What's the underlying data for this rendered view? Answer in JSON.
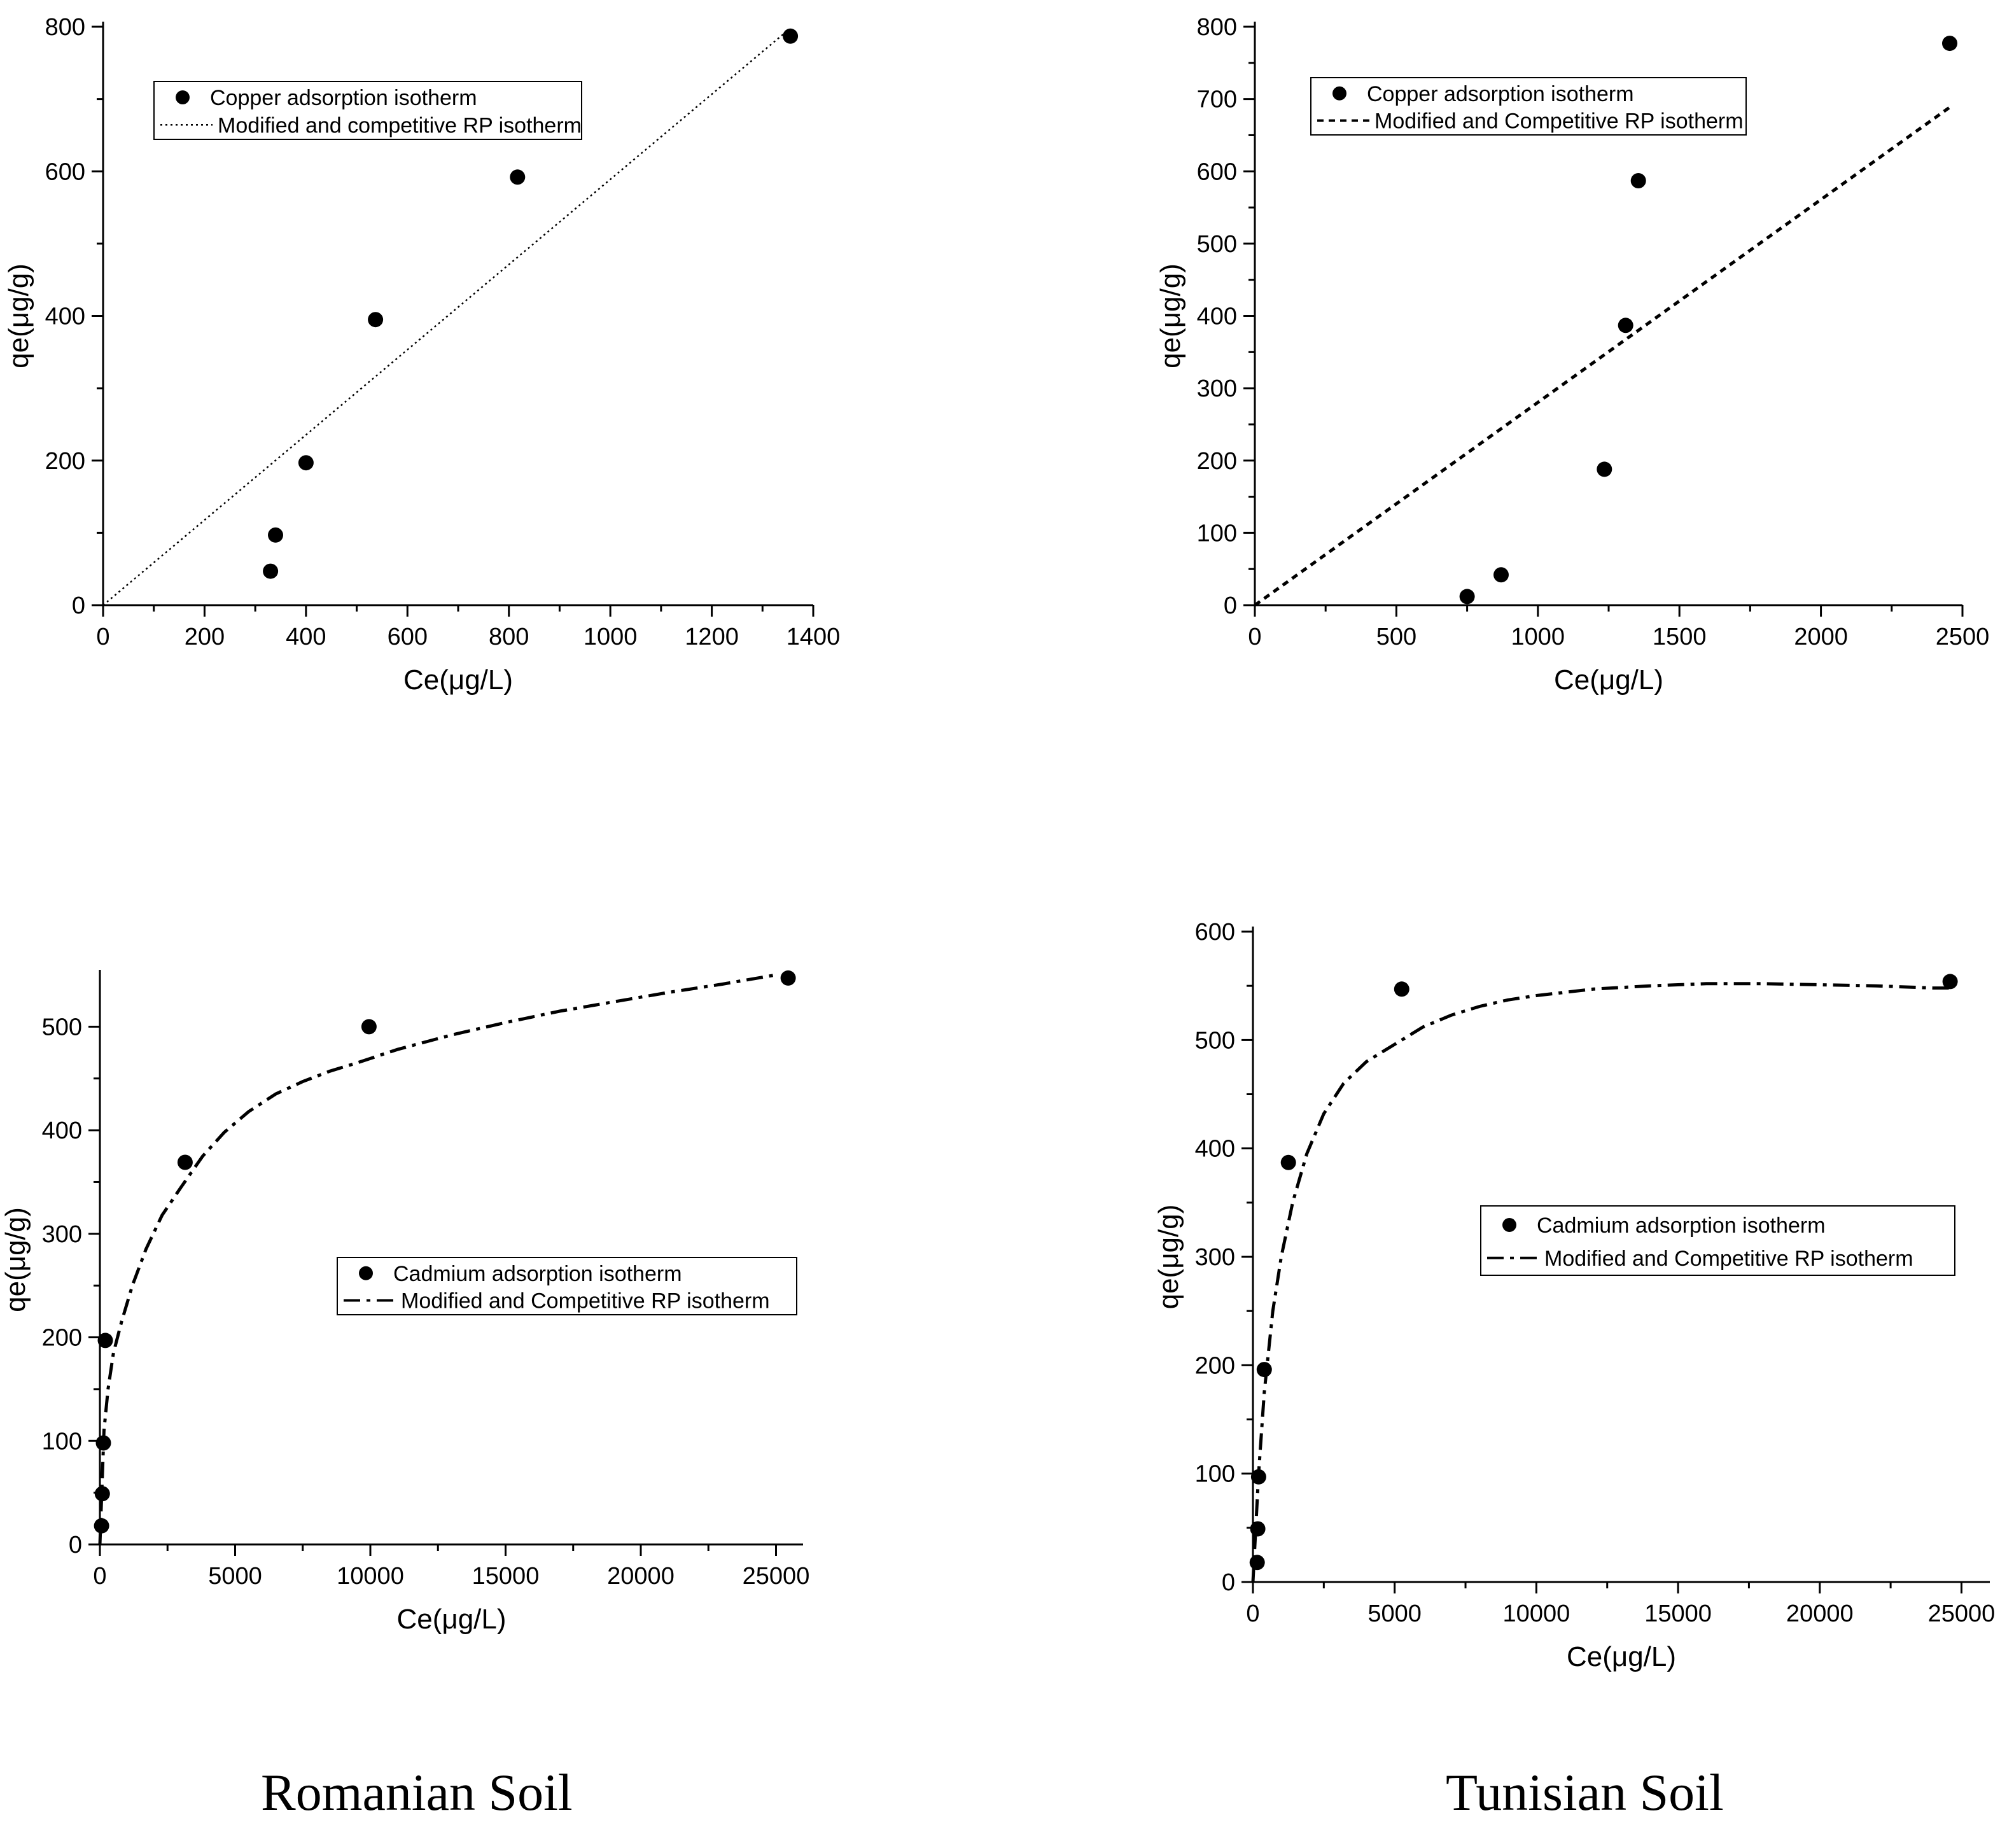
{
  "colors": {
    "ink": "#000000",
    "background": "#ffffff"
  },
  "soils": [
    "Romanian Soil",
    "Tunisian Soil"
  ],
  "chart_data": [
    {
      "id": "romanian-copper",
      "type": "scatter",
      "xlabel": "Ce(μg/L)",
      "ylabel": "qe(μg/g)",
      "xlim": [
        0,
        1400
      ],
      "ylim": [
        0,
        800
      ],
      "xticks": [
        0,
        200,
        400,
        600,
        800,
        1000,
        1200,
        1400
      ],
      "yticks": [
        0,
        200,
        400,
        600,
        800
      ],
      "xticklabels": [
        "0",
        "200",
        "400",
        "600",
        "800",
        "1000",
        "1200",
        "1400"
      ],
      "yticklabels": [
        "0",
        "200",
        "400",
        "600",
        "800"
      ],
      "legend": {
        "position": "top-left",
        "entries": [
          "Copper adsorption isotherm",
          "Modified and competitive RP isotherm"
        ]
      },
      "series": [
        {
          "name": "Copper adsorption isotherm",
          "kind": "points",
          "x": [
            330,
            340,
            400,
            537,
            817,
            1355
          ],
          "y": [
            47,
            97,
            197,
            395,
            592,
            787
          ]
        },
        {
          "name": "Modified and competitive RP isotherm",
          "kind": "line",
          "style": "dotted",
          "x": [
            0,
            1350
          ],
          "y": [
            0,
            795
          ]
        }
      ]
    },
    {
      "id": "tunisian-copper",
      "type": "scatter",
      "xlabel": "Ce(μg/L)",
      "ylabel": "qe(μg/g)",
      "xlim": [
        0,
        2500
      ],
      "ylim": [
        0,
        800
      ],
      "xticks": [
        0,
        500,
        1000,
        1500,
        2000,
        2500
      ],
      "yticks": [
        0,
        100,
        200,
        300,
        400,
        500,
        600,
        700,
        800
      ],
      "xticklabels": [
        "0",
        "500",
        "1000",
        "1500",
        "2000",
        "2500"
      ],
      "yticklabels": [
        "0",
        "100",
        "200",
        "300",
        "400",
        "500",
        "600",
        "700",
        "800"
      ],
      "legend": {
        "position": "top-left",
        "entries": [
          "Copper adsorption isotherm",
          "Modified and Competitive RP isotherm"
        ]
      },
      "series": [
        {
          "name": "Copper adsorption isotherm",
          "kind": "points",
          "x": [
            750,
            870,
            1235,
            1310,
            1355,
            2455
          ],
          "y": [
            12,
            42,
            188,
            387,
            587,
            777
          ]
        },
        {
          "name": "Modified and Competitive RP isotherm",
          "kind": "line",
          "style": "dashed",
          "x": [
            0,
            2460
          ],
          "y": [
            0,
            690
          ]
        }
      ]
    },
    {
      "id": "romanian-cadmium",
      "type": "scatter",
      "xlabel": "Ce(μg/L)",
      "ylabel": "qe(μg/g)",
      "xlim": [
        0,
        26000
      ],
      "ylim": [
        0,
        550
      ],
      "xticks": [
        0,
        5000,
        10000,
        15000,
        20000,
        25000
      ],
      "yticks": [
        0,
        100,
        200,
        300,
        400,
        500
      ],
      "xticklabels": [
        "0",
        "5000",
        "10000",
        "15000",
        "20000",
        "25000"
      ],
      "yticklabels": [
        "0",
        "100",
        "200",
        "300",
        "400",
        "500"
      ],
      "legend": {
        "position": "center-right",
        "entries": [
          "Cadmium adsorption isotherm",
          "Modified and Competitive RP isotherm"
        ]
      },
      "series": [
        {
          "name": "Cadmium adsorption isotherm",
          "kind": "points",
          "x": [
            60,
            90,
            130,
            200,
            3150,
            9950,
            25450
          ],
          "y": [
            18,
            49,
            98,
            197,
            369,
            500,
            547
          ]
        },
        {
          "name": "Modified and Competitive RP isotherm",
          "kind": "line",
          "style": "dash-dot",
          "x": [
            0,
            150,
            300,
            500,
            800,
            1200,
            1700,
            2300,
            3000,
            3800,
            4600,
            5500,
            6500,
            7500,
            8500,
            9500,
            11000,
            13000,
            15000,
            17000,
            19000,
            21000,
            23000,
            25000
          ],
          "y": [
            0,
            110,
            150,
            185,
            215,
            250,
            285,
            318,
            345,
            375,
            398,
            418,
            435,
            447,
            457,
            465,
            478,
            492,
            504,
            515,
            524,
            533,
            541,
            550
          ]
        }
      ]
    },
    {
      "id": "tunisian-cadmium",
      "type": "scatter",
      "xlabel": "Ce(μg/L)",
      "ylabel": "qe(μg/g)",
      "xlim": [
        0,
        26000
      ],
      "ylim": [
        0,
        600
      ],
      "xticks": [
        0,
        5000,
        10000,
        15000,
        20000,
        25000
      ],
      "yticks": [
        0,
        100,
        200,
        300,
        400,
        500,
        600
      ],
      "xticklabels": [
        "0",
        "5000",
        "10000",
        "15000",
        "20000",
        "25000"
      ],
      "yticklabels": [
        "0",
        "100",
        "200",
        "300",
        "400",
        "500",
        "600"
      ],
      "legend": {
        "position": "center-right",
        "entries": [
          "Cadmium adsorption isotherm",
          "Modified and Competitive RP isotherm"
        ]
      },
      "series": [
        {
          "name": "Cadmium adsorption isotherm",
          "kind": "points",
          "x": [
            150,
            170,
            200,
            400,
            1250,
            5250,
            24600
          ],
          "y": [
            18,
            49,
            97,
            196,
            387,
            547,
            554
          ]
        },
        {
          "name": "Modified and Competitive RP isotherm",
          "kind": "line",
          "style": "dash-dot",
          "x": [
            0,
            200,
            400,
            700,
            1000,
            1400,
            1900,
            2500,
            3200,
            4000,
            5000,
            6000,
            7000,
            8000,
            9000,
            10000,
            12000,
            14000,
            16000,
            18000,
            20000,
            22000,
            24000,
            24700
          ],
          "y": [
            0,
            100,
            175,
            250,
            300,
            350,
            395,
            432,
            460,
            480,
            496,
            512,
            523,
            531,
            537,
            541,
            547,
            550,
            552,
            552,
            551,
            550,
            548,
            548
          ]
        }
      ]
    }
  ]
}
